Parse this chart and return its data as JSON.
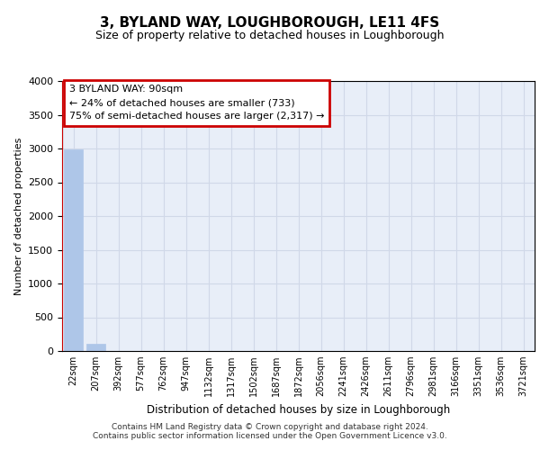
{
  "title1": "3, BYLAND WAY, LOUGHBOROUGH, LE11 4FS",
  "title2": "Size of property relative to detached houses in Loughborough",
  "xlabel": "Distribution of detached houses by size in Loughborough",
  "ylabel": "Number of detached properties",
  "categories": [
    "22sqm",
    "207sqm",
    "392sqm",
    "577sqm",
    "762sqm",
    "947sqm",
    "1132sqm",
    "1317sqm",
    "1502sqm",
    "1687sqm",
    "1872sqm",
    "2056sqm",
    "2241sqm",
    "2426sqm",
    "2611sqm",
    "2796sqm",
    "2981sqm",
    "3166sqm",
    "3351sqm",
    "3536sqm",
    "3721sqm"
  ],
  "values": [
    2990,
    105,
    0,
    0,
    0,
    0,
    0,
    0,
    0,
    0,
    0,
    0,
    0,
    0,
    0,
    0,
    0,
    0,
    0,
    0,
    0
  ],
  "bar_color": "#aec6e8",
  "bar_edgecolor": "#aec6e8",
  "ylim": [
    0,
    4000
  ],
  "yticks": [
    0,
    500,
    1000,
    1500,
    2000,
    2500,
    3000,
    3500,
    4000
  ],
  "annotation_text": "3 BYLAND WAY: 90sqm\n← 24% of detached houses are smaller (733)\n75% of semi-detached houses are larger (2,317) →",
  "annotation_box_color": "#ffffff",
  "annotation_box_edgecolor": "#cc0000",
  "grid_color": "#d0d8e8",
  "background_color": "#e8eef8",
  "footer1": "Contains HM Land Registry data © Crown copyright and database right 2024.",
  "footer2": "Contains public sector information licensed under the Open Government Licence v3.0.",
  "red_line_color": "#cc0000",
  "red_line_x": -0.5
}
